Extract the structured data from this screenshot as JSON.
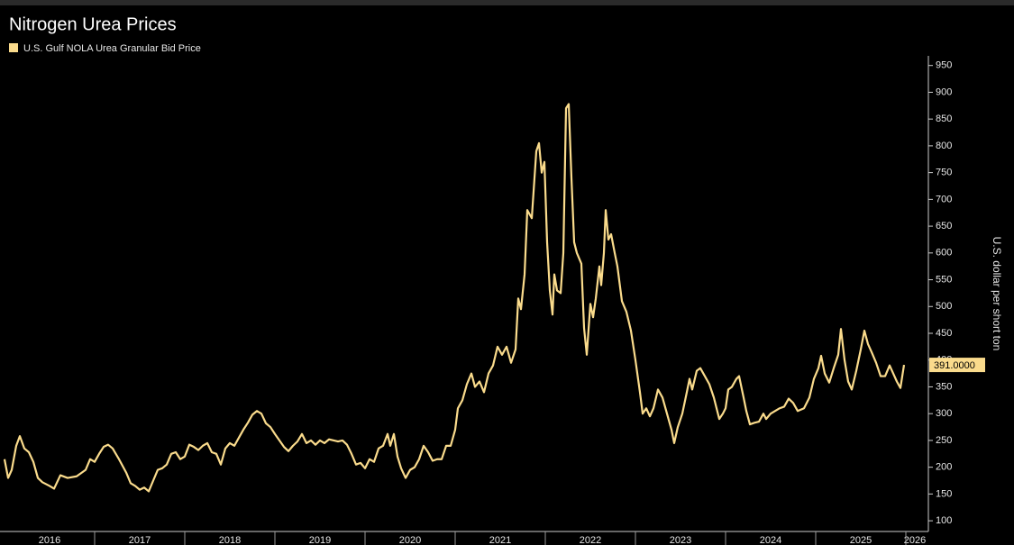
{
  "chart_data": {
    "type": "line",
    "title": "Nitrogen Urea Prices",
    "y_axis_label": "U.S. dollar per short ton",
    "xlim": [
      2015.95,
      2026.25
    ],
    "xticks": [
      {
        "value": 2016.5,
        "label": "2016"
      },
      {
        "value": 2017.5,
        "label": "2017"
      },
      {
        "value": 2018.5,
        "label": "2018"
      },
      {
        "value": 2019.5,
        "label": "2019"
      },
      {
        "value": 2020.5,
        "label": "2020"
      },
      {
        "value": 2021.5,
        "label": "2021"
      },
      {
        "value": 2022.5,
        "label": "2022"
      },
      {
        "value": 2023.5,
        "label": "2023"
      },
      {
        "value": 2024.5,
        "label": "2024"
      },
      {
        "value": 2025.5,
        "label": "2025"
      },
      {
        "value": 2026.1,
        "label": "2026"
      }
    ],
    "ylim": [
      80,
      968
    ],
    "yticks": [
      100,
      150,
      200,
      250,
      300,
      350,
      400,
      450,
      500,
      550,
      600,
      650,
      700,
      750,
      800,
      850,
      900,
      950
    ],
    "grid": false,
    "legend": "top-left",
    "last_value": {
      "value": 391,
      "label": "391.0000"
    },
    "series": [
      {
        "name": "U.S. Gulf NOLA Urea Granular Bid Price",
        "color": "#fadb8c",
        "x": [
          2016.0,
          2016.04,
          2016.08,
          2016.13,
          2016.17,
          2016.22,
          2016.27,
          2016.32,
          2016.37,
          2016.42,
          2016.5,
          2016.55,
          2016.62,
          2016.7,
          2016.8,
          2016.9,
          2016.95,
          2017.0,
          2017.05,
          2017.1,
          2017.15,
          2017.2,
          2017.27,
          2017.35,
          2017.4,
          2017.45,
          2017.5,
          2017.55,
          2017.6,
          2017.65,
          2017.7,
          2017.75,
          2017.8,
          2017.85,
          2017.9,
          2017.95,
          2018.0,
          2018.05,
          2018.1,
          2018.15,
          2018.2,
          2018.25,
          2018.3,
          2018.35,
          2018.4,
          2018.45,
          2018.5,
          2018.55,
          2018.6,
          2018.65,
          2018.7,
          2018.75,
          2018.8,
          2018.85,
          2018.9,
          2018.95,
          2019.0,
          2019.05,
          2019.1,
          2019.15,
          2019.2,
          2019.25,
          2019.3,
          2019.35,
          2019.4,
          2019.45,
          2019.5,
          2019.55,
          2019.6,
          2019.7,
          2019.75,
          2019.8,
          2019.85,
          2019.9,
          2019.95,
          2020.0,
          2020.05,
          2020.1,
          2020.15,
          2020.2,
          2020.25,
          2020.28,
          2020.32,
          2020.36,
          2020.4,
          2020.45,
          2020.5,
          2020.55,
          2020.6,
          2020.65,
          2020.7,
          2020.75,
          2020.8,
          2020.85,
          2020.9,
          2020.95,
          2021.0,
          2021.03,
          2021.08,
          2021.13,
          2021.18,
          2021.22,
          2021.27,
          2021.32,
          2021.37,
          2021.42,
          2021.47,
          2021.52,
          2021.57,
          2021.62,
          2021.67,
          2021.7,
          2021.73,
          2021.77,
          2021.8,
          2021.85,
          2021.9,
          2021.93,
          2021.96,
          2021.99,
          2022.02,
          2022.05,
          2022.08,
          2022.1,
          2022.13,
          2022.17,
          2022.2,
          2022.23,
          2022.26,
          2022.29,
          2022.32,
          2022.35,
          2022.4,
          2022.43,
          2022.46,
          2022.5,
          2022.53,
          2022.56,
          2022.6,
          2022.62,
          2022.65,
          2022.67,
          2022.7,
          2022.73,
          2022.77,
          2022.8,
          2022.85,
          2022.9,
          2022.95,
          2023.0,
          2023.05,
          2023.08,
          2023.12,
          2023.16,
          2023.2,
          2023.25,
          2023.3,
          2023.35,
          2023.4,
          2023.43,
          2023.47,
          2023.52,
          2023.57,
          2023.6,
          2023.63,
          2023.68,
          2023.72,
          2023.77,
          2023.82,
          2023.87,
          2023.9,
          2023.93,
          2023.97,
          2024.0,
          2024.03,
          2024.07,
          2024.12,
          2024.15,
          2024.2,
          2024.23,
          2024.27,
          2024.32,
          2024.37,
          2024.42,
          2024.45,
          2024.5,
          2024.55,
          2024.6,
          2024.65,
          2024.7,
          2024.75,
          2024.8,
          2024.87,
          2024.93,
          2024.98,
          2025.03,
          2025.06,
          2025.1,
          2025.15,
          2025.2,
          2025.25,
          2025.28,
          2025.32,
          2025.36,
          2025.4,
          2025.45,
          2025.5,
          2025.54,
          2025.58,
          2025.62,
          2025.67,
          2025.72,
          2025.77,
          2025.82,
          2025.86,
          2025.9,
          2025.94,
          2025.98
        ],
        "values": [
          215,
          180,
          195,
          240,
          258,
          235,
          228,
          210,
          180,
          172,
          165,
          160,
          185,
          180,
          183,
          195,
          215,
          210,
          225,
          238,
          242,
          235,
          215,
          190,
          170,
          165,
          158,
          162,
          155,
          175,
          195,
          198,
          205,
          225,
          228,
          215,
          220,
          242,
          238,
          232,
          240,
          245,
          228,
          225,
          205,
          235,
          245,
          240,
          255,
          270,
          283,
          298,
          305,
          300,
          282,
          275,
          262,
          250,
          238,
          230,
          240,
          248,
          262,
          245,
          250,
          242,
          250,
          245,
          252,
          248,
          250,
          242,
          225,
          205,
          208,
          198,
          215,
          210,
          235,
          240,
          262,
          240,
          262,
          220,
          198,
          180,
          195,
          200,
          215,
          240,
          228,
          212,
          215,
          215,
          240,
          240,
          270,
          310,
          325,
          355,
          375,
          350,
          360,
          340,
          375,
          390,
          425,
          410,
          425,
          395,
          420,
          515,
          495,
          560,
          680,
          665,
          790,
          805,
          750,
          770,
          620,
          530,
          485,
          560,
          530,
          525,
          600,
          870,
          878,
          740,
          620,
          600,
          580,
          460,
          410,
          505,
          480,
          515,
          575,
          540,
          600,
          680,
          625,
          635,
          600,
          575,
          510,
          490,
          455,
          400,
          340,
          300,
          310,
          295,
          310,
          345,
          330,
          300,
          270,
          245,
          275,
          300,
          340,
          365,
          345,
          380,
          385,
          370,
          355,
          330,
          310,
          290,
          300,
          310,
          345,
          350,
          365,
          370,
          330,
          305,
          280,
          283,
          285,
          300,
          290,
          300,
          305,
          310,
          313,
          328,
          320,
          305,
          310,
          330,
          365,
          385,
          408,
          375,
          358,
          385,
          410,
          458,
          400,
          360,
          345,
          380,
          420,
          455,
          430,
          415,
          395,
          370,
          370,
          390,
          375,
          360,
          348,
          391
        ]
      }
    ]
  }
}
